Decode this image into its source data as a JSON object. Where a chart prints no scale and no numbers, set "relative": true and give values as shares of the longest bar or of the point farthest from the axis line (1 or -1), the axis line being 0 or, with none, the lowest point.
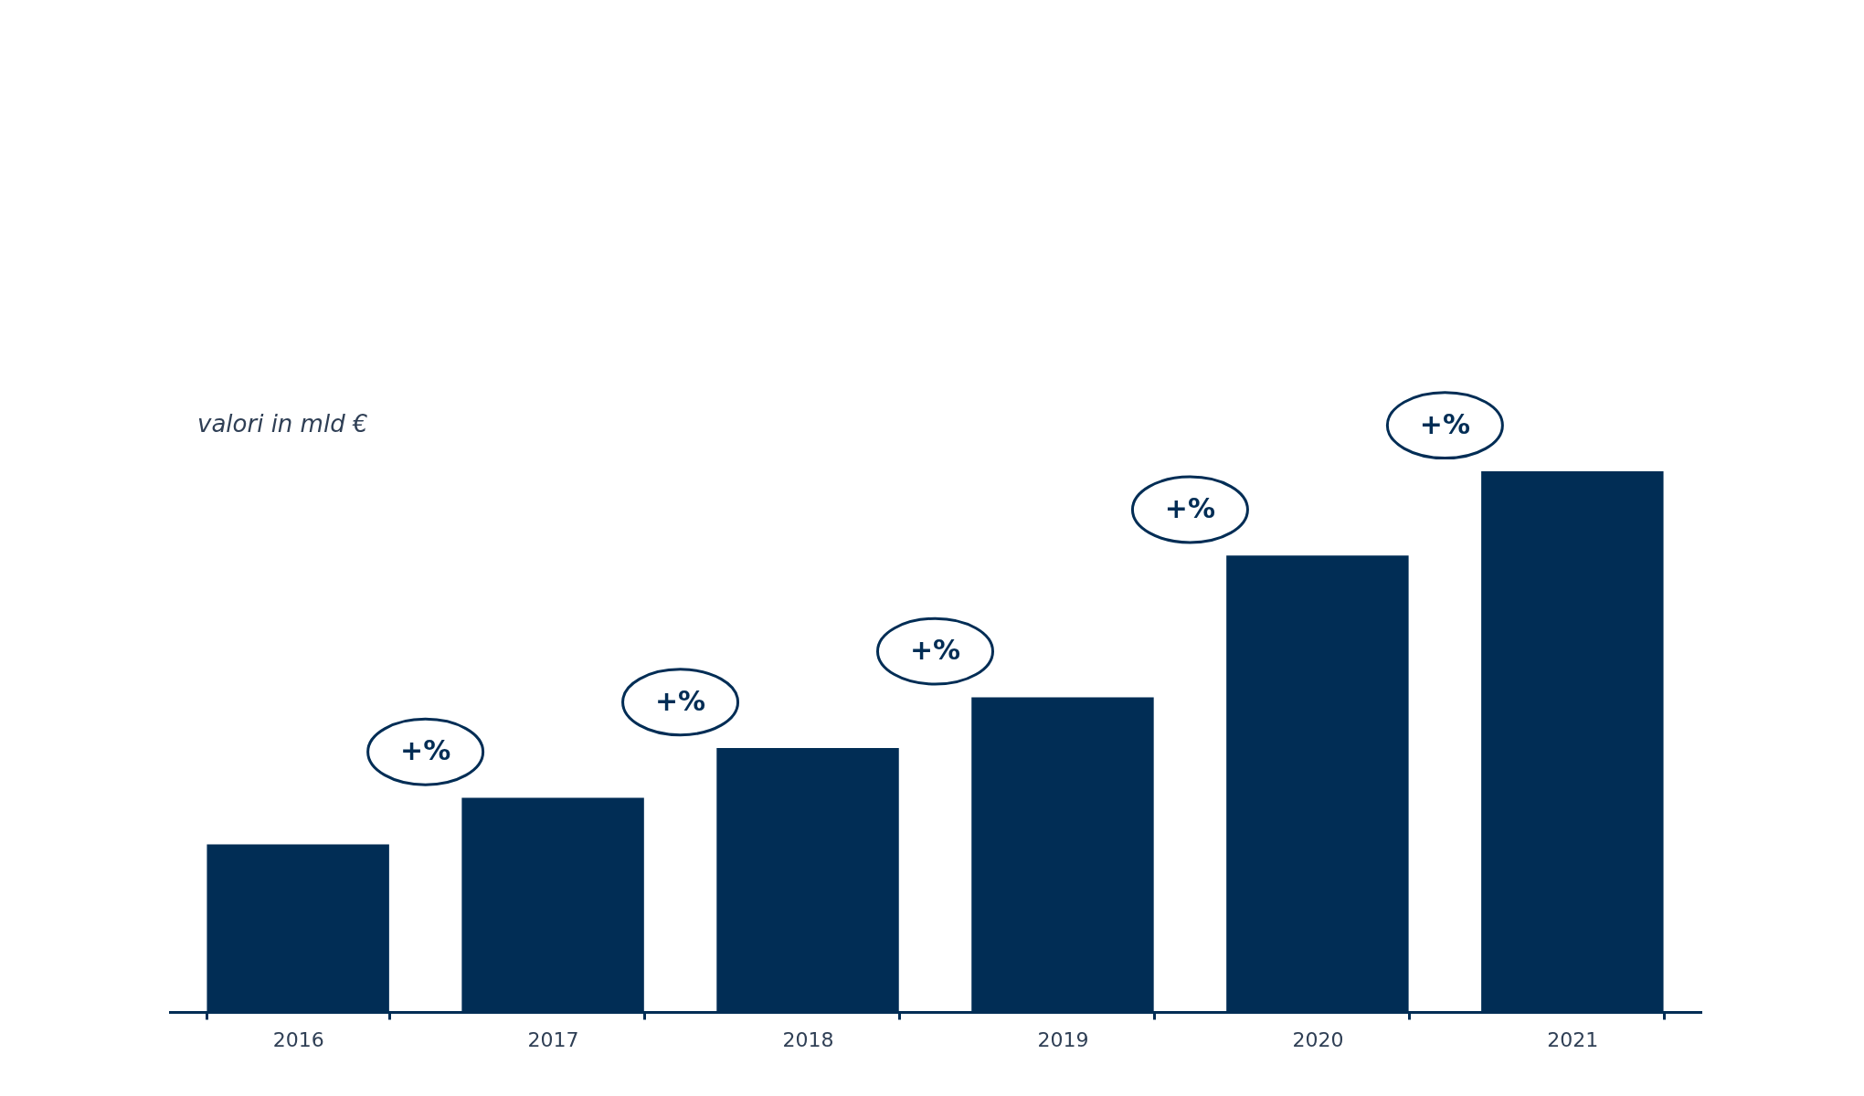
{
  "chart_data": {
    "type": "bar",
    "relative": true,
    "categories": [
      "2016",
      "2017",
      "2018",
      "2019",
      "2020",
      "2021"
    ],
    "values": [
      0.31,
      0.396,
      0.488,
      0.582,
      0.844,
      1
    ],
    "color": "#012d55",
    "annotations": [
      "valori in mld €",
      "+%",
      "+%",
      "+%",
      "+%",
      "+%"
    ],
    "grid": false
  }
}
